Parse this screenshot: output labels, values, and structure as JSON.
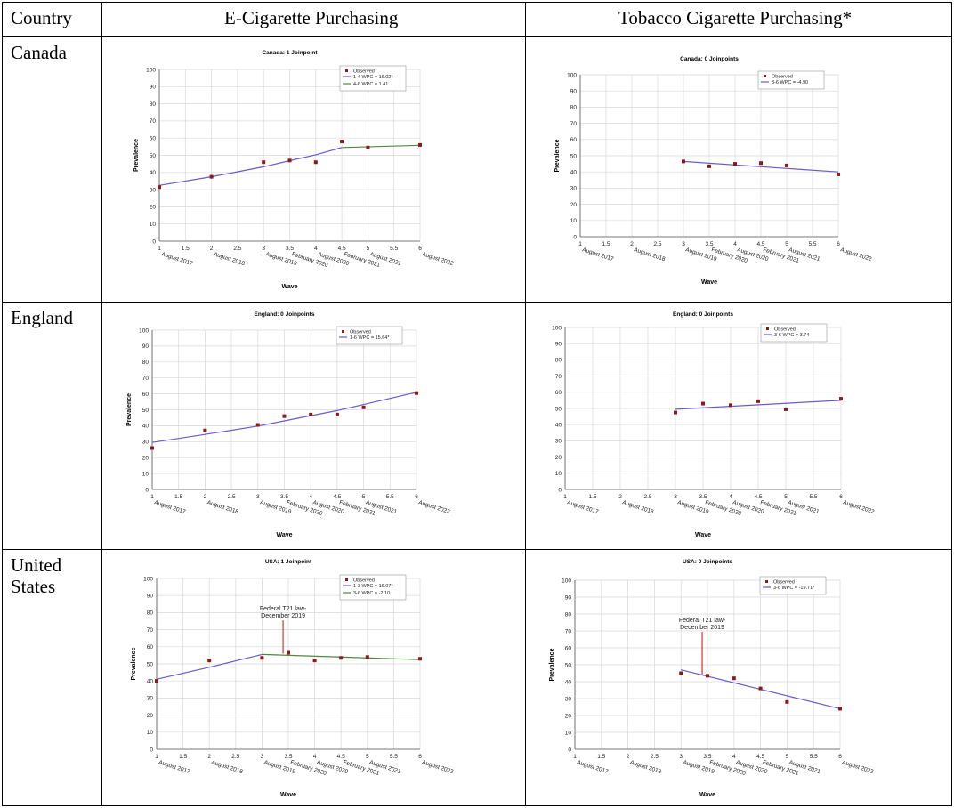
{
  "table": {
    "headers": [
      "Country",
      "E-Cigarette Purchasing",
      "Tobacco Cigarette Purchasing*"
    ],
    "rows": [
      {
        "country_lines": [
          "Canada"
        ]
      },
      {
        "country_lines": [
          "England"
        ]
      },
      {
        "country_lines": [
          "United",
          "States"
        ]
      }
    ]
  },
  "common": {
    "ylabel": "Prevalence",
    "xlabel": "Wave",
    "yticks": [
      0,
      10,
      20,
      30,
      40,
      50,
      60,
      70,
      80,
      90,
      100
    ],
    "xticks": [
      "1",
      "1.5",
      "2",
      "2.5",
      "3",
      "3.5",
      "4",
      "4.5",
      "5",
      "5.5",
      "6"
    ],
    "xtick_values": [
      1,
      1.5,
      2,
      2.5,
      3,
      3.5,
      4,
      4.5,
      5,
      5.5,
      6
    ],
    "xdates": [
      {
        "x": 1,
        "label": "August 2017"
      },
      {
        "x": 2,
        "label": "August 2018"
      },
      {
        "x": 3,
        "label": "August 2019"
      },
      {
        "x": 3.5,
        "label": "February 2020"
      },
      {
        "x": 4,
        "label": "August 2020"
      },
      {
        "x": 4.5,
        "label": "February 2021"
      },
      {
        "x": 5,
        "label": "August 2021"
      },
      {
        "x": 6,
        "label": "August 2022"
      }
    ],
    "observed_label": "Observed",
    "colors": {
      "observed": "#8b1a1a",
      "blue": "#6a5acd",
      "green": "#4e8a3e",
      "arrow": "#e03030",
      "grid": "#d8d8d8"
    }
  },
  "chart_data": [
    {
      "type": "scatter",
      "title": "Canada: 1 Joinpoint",
      "xlabel": "Wave",
      "ylabel": "Prevalence",
      "xlim": [
        1,
        6
      ],
      "ylim": [
        0,
        100
      ],
      "observed": {
        "x": [
          1,
          2,
          3,
          3.5,
          4,
          4.5,
          5,
          6
        ],
        "y": [
          31.5,
          37.5,
          46,
          47,
          46,
          58,
          54.5,
          56
        ]
      },
      "segments": [
        {
          "name": "1-4 WPC  = 16.02*",
          "color": "blue",
          "x": [
            1,
            2,
            3,
            3.5,
            4,
            4.5
          ],
          "y": [
            32.5,
            37.5,
            43.3,
            46.9,
            50.3,
            54.5
          ]
        },
        {
          "name": "4-6 WPC  = 1.41",
          "color": "green",
          "x": [
            4.5,
            6
          ],
          "y": [
            54.5,
            55.8
          ]
        }
      ],
      "annotation": null
    },
    {
      "type": "scatter",
      "title": "Canada: 0 Joinpoints",
      "xlabel": "Wave",
      "ylabel": "Prevalence",
      "xlim": [
        1,
        6
      ],
      "ylim": [
        0,
        100
      ],
      "observed": {
        "x": [
          3,
          3.5,
          4,
          4.5,
          5,
          6
        ],
        "y": [
          46.5,
          43.5,
          45,
          45.5,
          44,
          38.5
        ]
      },
      "segments": [
        {
          "name": "3-6 WPC  = -4.90",
          "color": "blue",
          "x": [
            3,
            6
          ],
          "y": [
            46.5,
            40
          ]
        }
      ],
      "annotation": null
    },
    {
      "type": "scatter",
      "title": "England: 0 Joinpoints",
      "xlabel": "Wave",
      "ylabel": "Prevalence",
      "xlim": [
        1,
        6
      ],
      "ylim": [
        0,
        100
      ],
      "observed": {
        "x": [
          1,
          2,
          3,
          3.5,
          4,
          4.5,
          5,
          6
        ],
        "y": [
          26,
          37,
          40.5,
          46,
          47,
          47,
          51.5,
          60.5
        ]
      },
      "segments": [
        {
          "name": "1-6 WPC  = 15.64*",
          "color": "blue",
          "x": [
            1,
            2,
            3,
            3.5,
            4,
            4.5,
            5,
            6
          ],
          "y": [
            29.5,
            34.5,
            39.8,
            43,
            46.3,
            49.5,
            53.3,
            61
          ]
        }
      ],
      "annotation": null
    },
    {
      "type": "scatter",
      "title": "England: 0 Joinpoints",
      "xlabel": "Wave",
      "ylabel": "Prevalence",
      "xlim": [
        1,
        6
      ],
      "ylim": [
        0,
        100
      ],
      "observed": {
        "x": [
          3,
          3.5,
          4,
          4.5,
          5,
          6
        ],
        "y": [
          47.5,
          53,
          52,
          54.5,
          49.5,
          56
        ]
      },
      "segments": [
        {
          "name": "3-6 WPC  = 3.74",
          "color": "blue",
          "x": [
            3,
            6
          ],
          "y": [
            49.5,
            55
          ]
        }
      ],
      "annotation": null
    },
    {
      "type": "scatter",
      "title": "USA: 1 Joinpoint",
      "xlabel": "Wave",
      "ylabel": "Prevalence",
      "xlim": [
        1,
        6
      ],
      "ylim": [
        0,
        100
      ],
      "observed": {
        "x": [
          1,
          2,
          3,
          3.5,
          4,
          4.5,
          5,
          6
        ],
        "y": [
          40,
          52,
          53.5,
          56.5,
          52,
          53.5,
          54,
          53
        ]
      },
      "segments": [
        {
          "name": "1-3 WPC  = 16.07*",
          "color": "blue",
          "x": [
            1,
            2,
            3
          ],
          "y": [
            41,
            48,
            55.5
          ]
        },
        {
          "name": "3-6 WPC  = -2.10",
          "color": "green",
          "x": [
            3,
            6
          ],
          "y": [
            55.5,
            52.5
          ]
        }
      ],
      "annotation": {
        "text": [
          "Federal T21 law-",
          "December 2019"
        ],
        "x": 3.4,
        "y_top": 76,
        "y_tip": 56
      }
    },
    {
      "type": "scatter",
      "title": "USA: 0 Joinpoints",
      "xlabel": "Wave",
      "ylabel": "Prevalence",
      "xlim": [
        1,
        6
      ],
      "ylim": [
        0,
        100
      ],
      "observed": {
        "x": [
          3,
          3.5,
          4,
          4.5,
          5,
          6
        ],
        "y": [
          45,
          43.5,
          42,
          36,
          28,
          24
        ]
      },
      "segments": [
        {
          "name": "3-6 WPC  = -19.71*",
          "color": "blue",
          "x": [
            3,
            6
          ],
          "y": [
            47,
            24
          ]
        }
      ],
      "annotation": {
        "text": [
          "Federal T21 law-",
          "December 2019"
        ],
        "x": 3.4,
        "y_top": 70,
        "y_tip": 44
      }
    }
  ]
}
